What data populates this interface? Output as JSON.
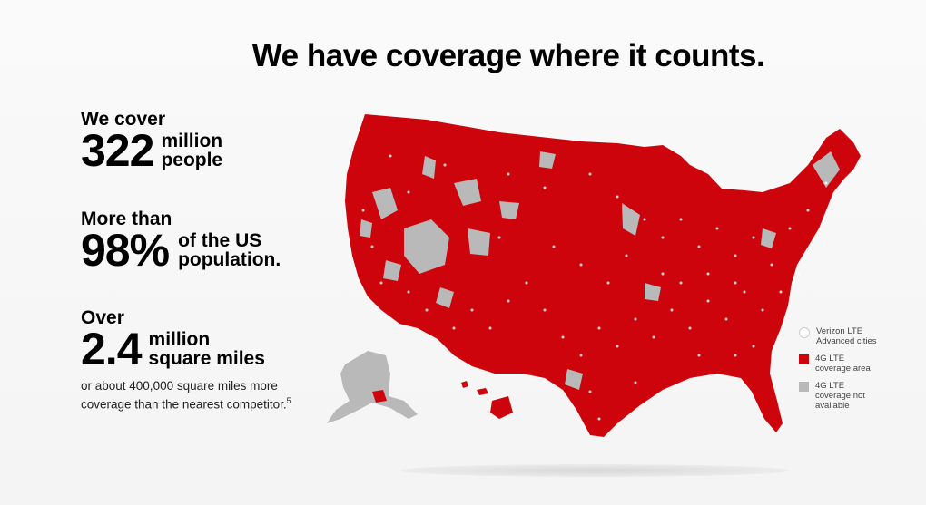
{
  "title": "We have coverage where it counts.",
  "stats": [
    {
      "lead": "We cover",
      "value": "322",
      "unit_line1": "million",
      "unit_line2": "people"
    },
    {
      "lead": "More than",
      "value": "98%",
      "unit_line1": "of the US",
      "unit_line2": "population."
    },
    {
      "lead": "Over",
      "value": "2.4",
      "unit_line1": "million",
      "unit_line2": "square miles"
    }
  ],
  "note": {
    "text": "or about 400,000 square miles more coverage than the nearest competitor.",
    "footnote": "5"
  },
  "legend": [
    {
      "label": "Verizon LTE Advanced cities",
      "icon": "circle"
    },
    {
      "label": "4G LTE coverage area",
      "icon": "square",
      "color": "#cd040b"
    },
    {
      "label": "4G LTE coverage not available",
      "icon": "square",
      "color": "#b9b9b9"
    }
  ],
  "colors": {
    "coverage": "#cd040b",
    "no_coverage": "#b9b9b9"
  }
}
